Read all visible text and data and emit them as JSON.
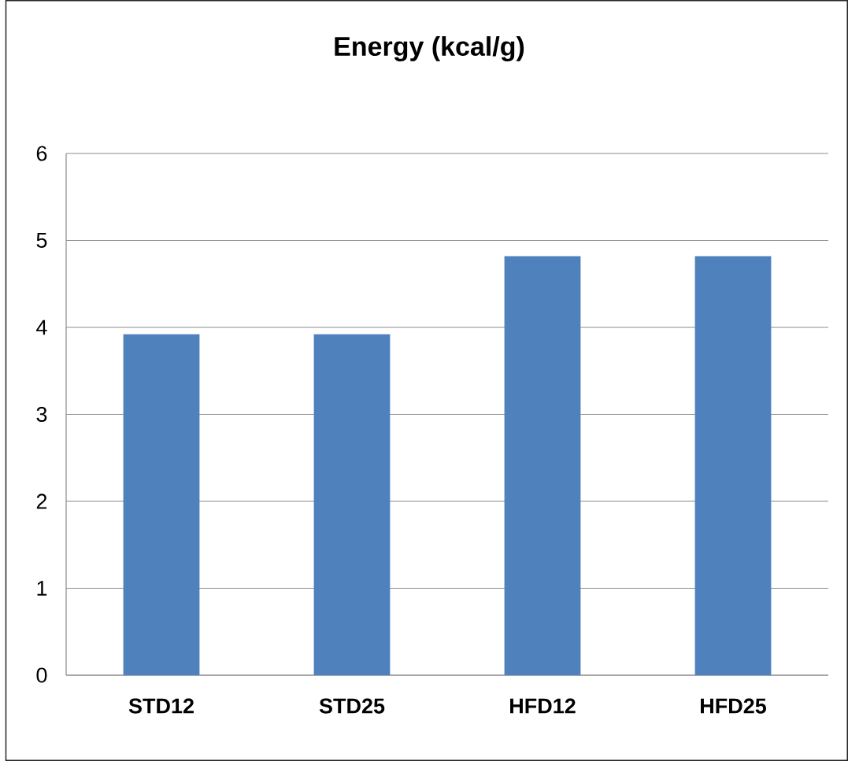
{
  "chart_data": {
    "type": "bar",
    "title": "Energy (kcal/g)",
    "categories": [
      "STD12",
      "STD25",
      "HFD12",
      "HFD25"
    ],
    "values": [
      3.92,
      3.92,
      4.82,
      4.82
    ],
    "color": "#4f81bd",
    "ylim": [
      0,
      6
    ],
    "yticks": [
      0,
      1,
      2,
      3,
      4,
      5,
      6
    ],
    "grid": "y"
  }
}
